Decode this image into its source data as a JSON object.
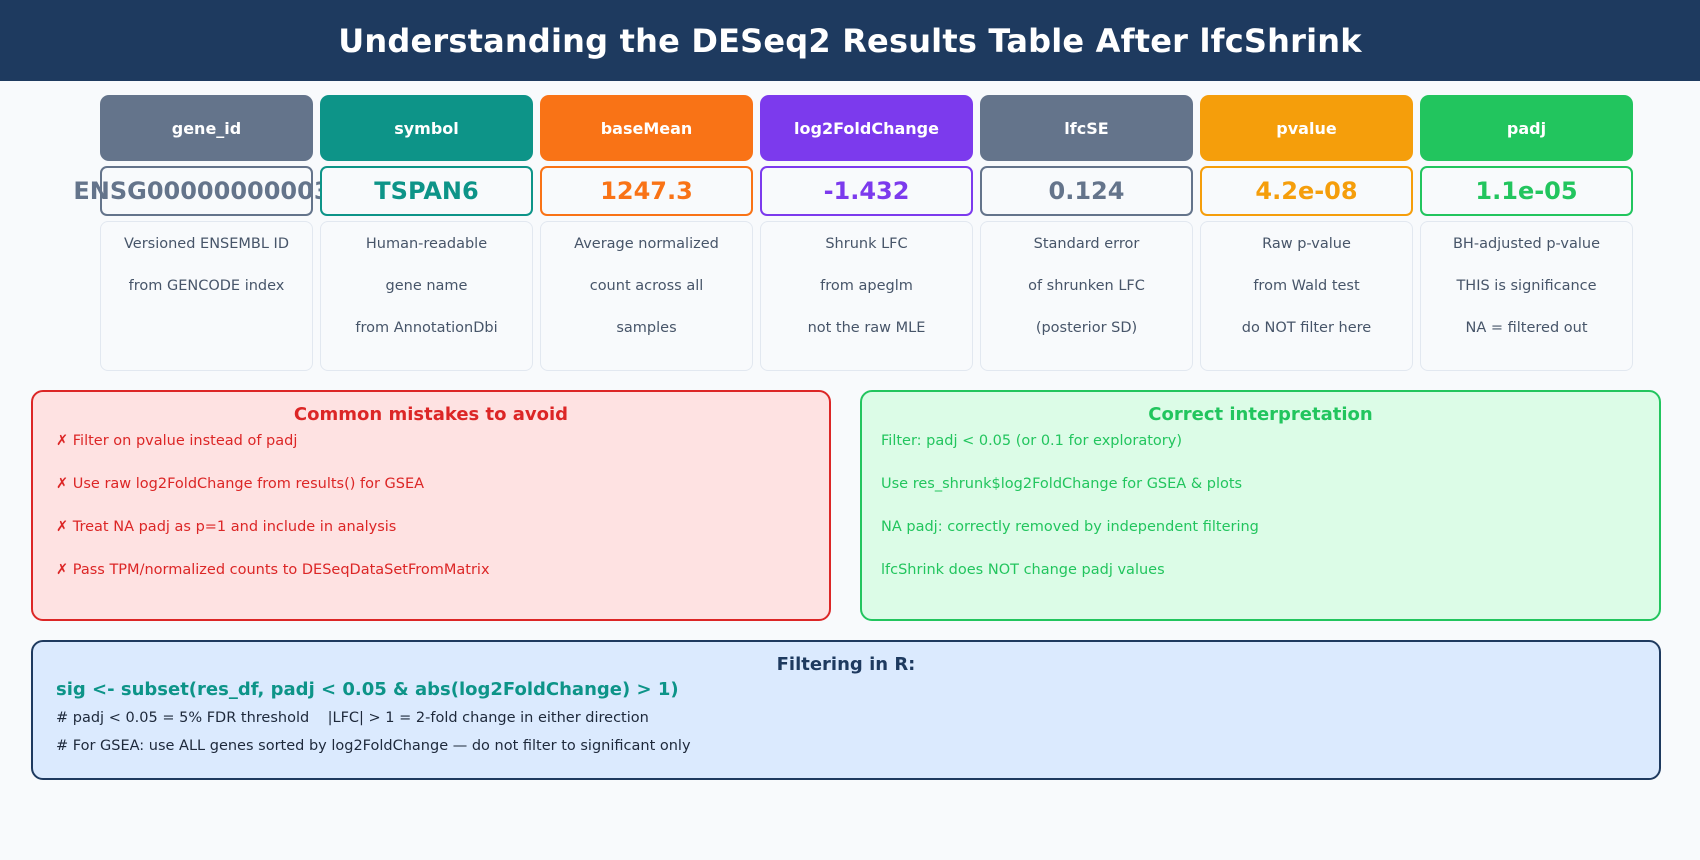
{
  "title": "Understanding the DESeq2 Results Table After lfcShrink",
  "columns": [
    {
      "header": "gene_id",
      "value": "ENSG00000000003.",
      "color": "#64748b",
      "desc": [
        "Versioned ENSEMBL ID",
        "from GENCODE index",
        ""
      ]
    },
    {
      "header": "symbol",
      "value": "TSPAN6",
      "color": "#0d9488",
      "desc": [
        "Human-readable",
        "gene name",
        "from AnnotationDbi"
      ]
    },
    {
      "header": "baseMean",
      "value": "1247.3",
      "color": "#f97316",
      "desc": [
        "Average normalized",
        "count across all",
        "samples"
      ]
    },
    {
      "header": "log2FoldChange",
      "value": "-1.432",
      "color": "#7c3aed",
      "desc": [
        "Shrunk LFC",
        "from apeglm",
        "not the raw MLE"
      ]
    },
    {
      "header": "lfcSE",
      "value": "0.124",
      "color": "#64748b",
      "desc": [
        "Standard error",
        "of shrunken LFC",
        "(posterior SD)"
      ]
    },
    {
      "header": "pvalue",
      "value": "4.2e-08",
      "color": "#f59e0b",
      "desc": [
        "Raw p-value",
        "from Wald test",
        "do NOT filter here"
      ]
    },
    {
      "header": "padj",
      "value": "1.1e-05",
      "color": "#22c55e",
      "desc": [
        "BH-adjusted p-value",
        "THIS is significance",
        "NA = filtered out"
      ]
    }
  ],
  "mistakes": {
    "title": "Common mistakes to avoid",
    "items": [
      "✗ Filter on pvalue instead of padj",
      "✗ Use raw log2FoldChange from results() for GSEA",
      "✗ Treat NA padj as p=1 and include in analysis",
      "✗ Pass TPM/normalized counts to DESeqDataSetFromMatrix"
    ]
  },
  "correct": {
    "title": "Correct interpretation",
    "items": [
      "Filter: padj < 0.05 (or 0.1 for exploratory)",
      "Use res_shrunk$log2FoldChange for GSEA & plots",
      "NA padj: correctly removed by independent filtering",
      "lfcShrink does NOT change padj values"
    ]
  },
  "filtering": {
    "title": "Filtering in R:",
    "code": "sig <- subset(res_df, padj < 0.05 & abs(log2FoldChange) > 1)",
    "comments": [
      "# padj < 0.05 = 5% FDR threshold    |LFC| > 1 = 2-fold change in either direction",
      "# For GSEA: use ALL genes sorted by log2FoldChange — do not filter to significant only"
    ]
  }
}
